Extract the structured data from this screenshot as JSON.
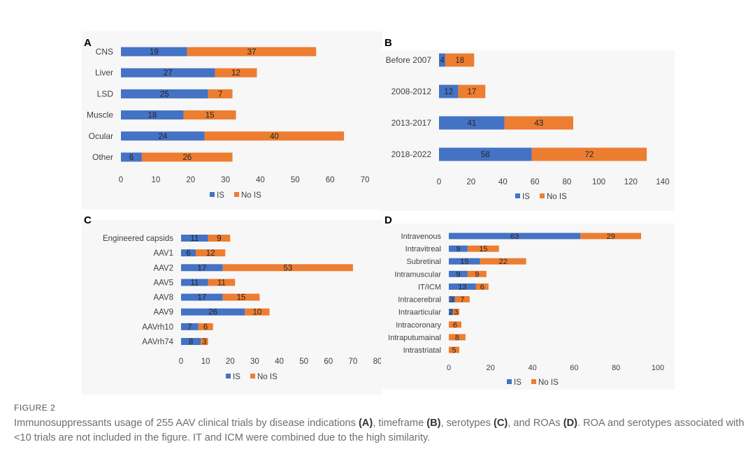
{
  "figure": {
    "label": "FIGURE 2",
    "caption": [
      {
        "text": "Immunosuppressants usage of 255 AAV clinical trials by disease indications ",
        "bold": false
      },
      {
        "text": "(A)",
        "bold": true
      },
      {
        "text": ", timeframe ",
        "bold": false
      },
      {
        "text": "(B)",
        "bold": true
      },
      {
        "text": ", serotypes ",
        "bold": false
      },
      {
        "text": "(C)",
        "bold": true
      },
      {
        "text": ", and ROAs ",
        "bold": false
      },
      {
        "text": "(D)",
        "bold": true
      },
      {
        "text": ". ROA and serotypes associated with <10 trials are not included in the figure. IT and ICM were combined due to the high similarity.",
        "bold": false
      }
    ]
  },
  "colors": {
    "is": "#4472c4",
    "no_is": "#ed7d31",
    "panel_bg": "#f7f7f7",
    "axis_text": "#404040"
  },
  "chart_data": [
    {
      "id": "A",
      "title": "A",
      "type": "bar",
      "orientation": "horizontal",
      "stacked": true,
      "categories": [
        "CNS",
        "Liver",
        "LSD",
        "Muscle",
        "Ocular",
        "Other"
      ],
      "series": [
        {
          "name": "IS",
          "values": [
            19,
            27,
            25,
            18,
            24,
            6
          ]
        },
        {
          "name": "No IS",
          "values": [
            37,
            12,
            7,
            15,
            40,
            26
          ]
        }
      ],
      "xlim": [
        0,
        70
      ],
      "xticks": [
        0,
        10,
        20,
        30,
        40,
        50,
        60,
        70
      ],
      "legend": [
        "IS",
        "No IS"
      ],
      "legend_position": "bottom",
      "grid": false
    },
    {
      "id": "B",
      "title": "B",
      "type": "bar",
      "orientation": "horizontal",
      "stacked": true,
      "categories": [
        "Before 2007",
        "2008-2012",
        "2013-2017",
        "2018-2022"
      ],
      "series": [
        {
          "name": "IS",
          "values": [
            4,
            12,
            41,
            58
          ]
        },
        {
          "name": "No IS",
          "values": [
            18,
            17,
            43,
            72
          ]
        }
      ],
      "xlim": [
        0,
        140
      ],
      "xticks": [
        0,
        20,
        40,
        60,
        80,
        100,
        120,
        140
      ],
      "legend": [
        "IS",
        "No IS"
      ],
      "legend_position": "bottom",
      "grid": false
    },
    {
      "id": "C",
      "title": "C",
      "type": "bar",
      "orientation": "horizontal",
      "stacked": true,
      "categories": [
        "Engineered capsids",
        "AAV1",
        "AAV2",
        "AAV5",
        "AAV8",
        "AAV9",
        "AAVrh10",
        "AAVrh74"
      ],
      "series": [
        {
          "name": "IS",
          "values": [
            11,
            6,
            17,
            11,
            17,
            26,
            7,
            8
          ]
        },
        {
          "name": "No IS",
          "values": [
            9,
            12,
            53,
            11,
            15,
            10,
            6,
            3
          ]
        }
      ],
      "xlim": [
        0,
        80
      ],
      "xticks": [
        0,
        10,
        20,
        30,
        40,
        50,
        60,
        70,
        80
      ],
      "legend": [
        "IS",
        "No IS"
      ],
      "legend_position": "bottom",
      "grid": false
    },
    {
      "id": "D",
      "title": "D",
      "type": "bar",
      "orientation": "horizontal",
      "stacked": true,
      "categories": [
        "Intravenous",
        "Intravitreal",
        "Subretinal",
        "Intramuscular",
        "IT/ICM",
        "Intracerebral",
        "Intraarticular",
        "Intracoronary",
        "Intraputumainal",
        "Intrastriatal"
      ],
      "series": [
        {
          "name": "IS",
          "values": [
            63,
            9,
            15,
            9,
            13,
            3,
            2,
            0,
            0,
            0
          ]
        },
        {
          "name": "No IS",
          "values": [
            29,
            15,
            22,
            9,
            6,
            7,
            3,
            6,
            8,
            5
          ]
        }
      ],
      "xlim": [
        0,
        100
      ],
      "xticks": [
        0,
        20,
        40,
        60,
        80,
        100
      ],
      "legend": [
        "IS",
        "No IS"
      ],
      "legend_position": "bottom",
      "grid": false
    }
  ]
}
